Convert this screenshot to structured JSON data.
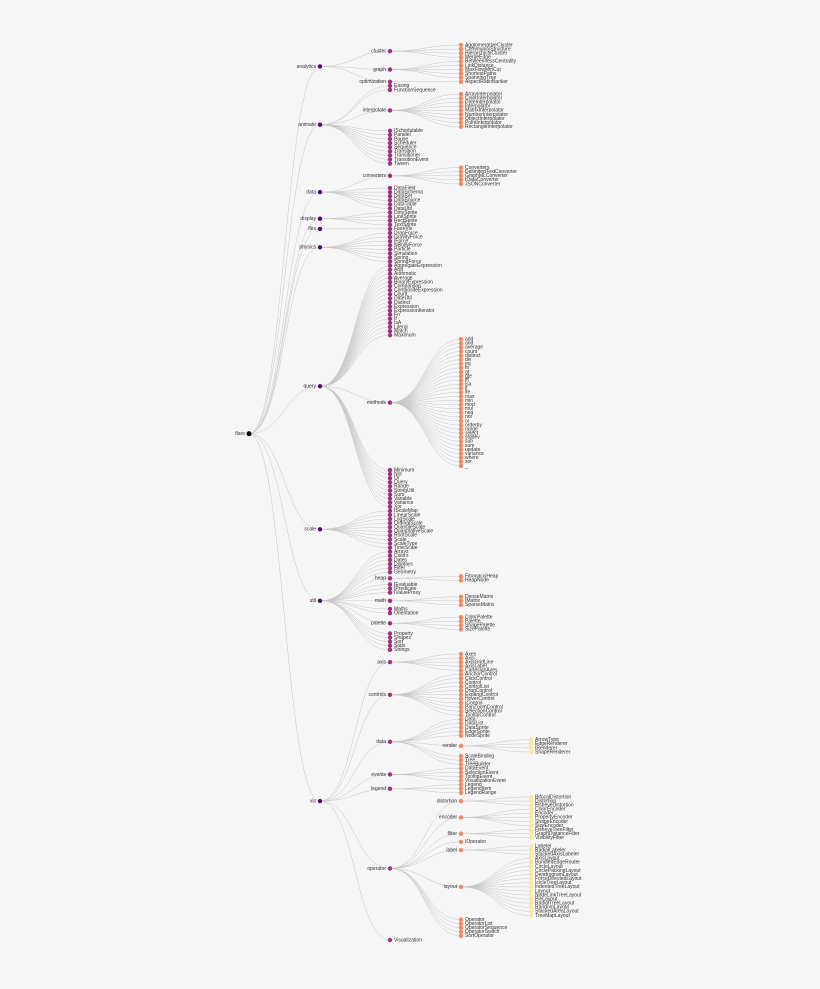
{
  "tree": {
    "name": "flare",
    "children": [
      {
        "name": "analytics",
        "children": [
          {
            "name": "cluster",
            "children": [
              "AgglomerativeCluster",
              "CommunityStructure",
              "HierarchicalCluster",
              "MergeEdge"
            ]
          },
          {
            "name": "graph",
            "children": [
              "BetweennessCentrality",
              "LinkDistance",
              "MaxFlowMinCut",
              "ShortestPaths",
              "SpanningTree"
            ]
          },
          {
            "name": "optimization",
            "children": [
              "AspectRatioBanker"
            ]
          }
        ]
      },
      {
        "name": "animate",
        "children": [
          "Easing",
          "FunctionSequence",
          {
            "name": "interpolate",
            "children": [
              "ArrayInterpolator",
              "ColorInterpolator",
              "DateInterpolator",
              "Interpolator",
              "MatrixInterpolator",
              "NumberInterpolator",
              "ObjectInterpolator",
              "PointInterpolator",
              "RectangleInterpolator"
            ]
          },
          "ISchedulable",
          "Parallel",
          "Pause",
          "Scheduler",
          "Sequence",
          "Transition",
          "Transitioner",
          "TransitionEvent",
          "Tween"
        ]
      },
      {
        "name": "data",
        "children": [
          {
            "name": "converters",
            "children": [
              "Converters",
              "DelimitedTextConverter",
              "GraphMLConverter",
              "IDataConverter",
              "JSONConverter"
            ]
          },
          "DataField",
          "DataSchema",
          "DataSet",
          "DataSource",
          "DataTable",
          "DataUtil"
        ]
      },
      {
        "name": "display",
        "children": [
          "DirtySprite",
          "LineSprite",
          "RectSprite",
          "TextSprite"
        ]
      },
      {
        "name": "flex",
        "children": [
          "FlareVis"
        ]
      },
      {
        "name": "physics",
        "children": [
          "DragForce",
          "GravityForce",
          "IForce",
          "NBodyForce",
          "Particle",
          "Simulation",
          "Spring",
          "SpringForce"
        ]
      },
      {
        "name": "query",
        "children": [
          "AggregateExpression",
          "And",
          "Arithmetic",
          "Average",
          "BinaryExpression",
          "Comparison",
          "CompositeExpression",
          "Count",
          "DateUtil",
          "Distinct",
          "Expression",
          "ExpressionIterator",
          "Fn",
          "If",
          "IsA",
          "Literal",
          "Match",
          "Maximum",
          {
            "name": "methods",
            "children": [
              "add",
              "and",
              "average",
              "count",
              "distinct",
              "div",
              "eq",
              "fn",
              "gt",
              "gte",
              "iff",
              "isa",
              "lt",
              "lte",
              "max",
              "min",
              "mod",
              "mul",
              "neq",
              "not",
              "or",
              "orderby",
              "range",
              "select",
              "stddev",
              "sub",
              "sum",
              "update",
              "variance",
              "where",
              "xor",
              "_"
            ]
          },
          "Minimum",
          "Not",
          "Or",
          "Query",
          "Range",
          "StringUtil",
          "Sum",
          "Variable",
          "Variance",
          "Xor"
        ]
      },
      {
        "name": "scale",
        "children": [
          "IScaleMap",
          "LinearScale",
          "LogScale",
          "OrdinalScale",
          "QuantileScale",
          "QuantitativeScale",
          "RootScale",
          "Scale",
          "ScaleType",
          "TimeScale"
        ]
      },
      {
        "name": "util",
        "children": [
          "Arrays",
          "Colors",
          "Dates",
          "Displays",
          "Filter",
          "Geometry",
          {
            "name": "heap",
            "children": [
              "FibonacciHeap",
              "HeapNode"
            ]
          },
          "IEvaluable",
          "IPredicate",
          "IValueProxy",
          {
            "name": "math",
            "children": [
              "DenseMatrix",
              "IMatrix",
              "SparseMatrix"
            ]
          },
          "Maths",
          "Orientation",
          {
            "name": "palette",
            "children": [
              "ColorPalette",
              "Palette",
              "ShapePalette",
              "SizePalette"
            ]
          },
          "Property",
          "Shapes",
          "Sort",
          "Stats",
          "Strings"
        ]
      },
      {
        "name": "vis",
        "children": [
          {
            "name": "axis",
            "children": [
              "Axes",
              "Axis",
              "AxisGridLine",
              "AxisLabel",
              "CartesianAxes"
            ]
          },
          {
            "name": "controls",
            "children": [
              "AnchorControl",
              "ClickControl",
              "Control",
              "ControlList",
              "DragControl",
              "ExpandControl",
              "HoverControl",
              "IControl",
              "PanZoomControl",
              "SelectionControl",
              "TooltipControl"
            ]
          },
          {
            "name": "data",
            "children": [
              "Data",
              "DataList",
              "DataSprite",
              "EdgeSprite",
              "NodeSprite",
              {
                "name": "render",
                "children": [
                  "ArrowType",
                  "EdgeRenderer",
                  "IRenderer",
                  "ShapeRenderer"
                ]
              },
              "ScaleBinding",
              "Tree",
              "TreeBuilder"
            ]
          },
          {
            "name": "events",
            "children": [
              "DataEvent",
              "SelectionEvent",
              "TooltipEvent",
              "VisualizationEvent"
            ]
          },
          {
            "name": "legend",
            "children": [
              "Legend",
              "LegendItem",
              "LegendRange"
            ]
          },
          {
            "name": "operator",
            "children": [
              {
                "name": "distortion",
                "children": [
                  "BifocalDistortion",
                  "Distortion",
                  "FisheyeDistortion"
                ]
              },
              {
                "name": "encoder",
                "children": [
                  "ColorEncoder",
                  "Encoder",
                  "PropertyEncoder",
                  "ShapeEncoder",
                  "SizeEncoder"
                ]
              },
              {
                "name": "filter",
                "children": [
                  "FisheyeTreeFilter",
                  "GraphDistanceFilter",
                  "VisibilityFilter"
                ]
              },
              "IOperator",
              {
                "name": "label",
                "children": [
                  "Labeler",
                  "RadialLabeler",
                  "StackedAxisLabeler"
                ]
              },
              {
                "name": "layout",
                "children": [
                  "AxisLayout",
                  "BundledEdgeRouter",
                  "CircleLayout",
                  "CirclePackingLayout",
                  "DendrogramLayout",
                  "ForceDirectedLayout",
                  "IcicleTreeLayout",
                  "IndentedTreeLayout",
                  "Layout",
                  "NodeLinkTreeLayout",
                  "PieLayout",
                  "RadialTreeLayout",
                  "RandomLayout",
                  "StackedAreaLayout",
                  "TreeMapLayout"
                ]
              },
              "Operator",
              "OperatorList",
              "OperatorSequence",
              "OperatorSwitch",
              "SortOperator"
            ]
          },
          "Visualization"
        ]
      }
    ]
  }
}
